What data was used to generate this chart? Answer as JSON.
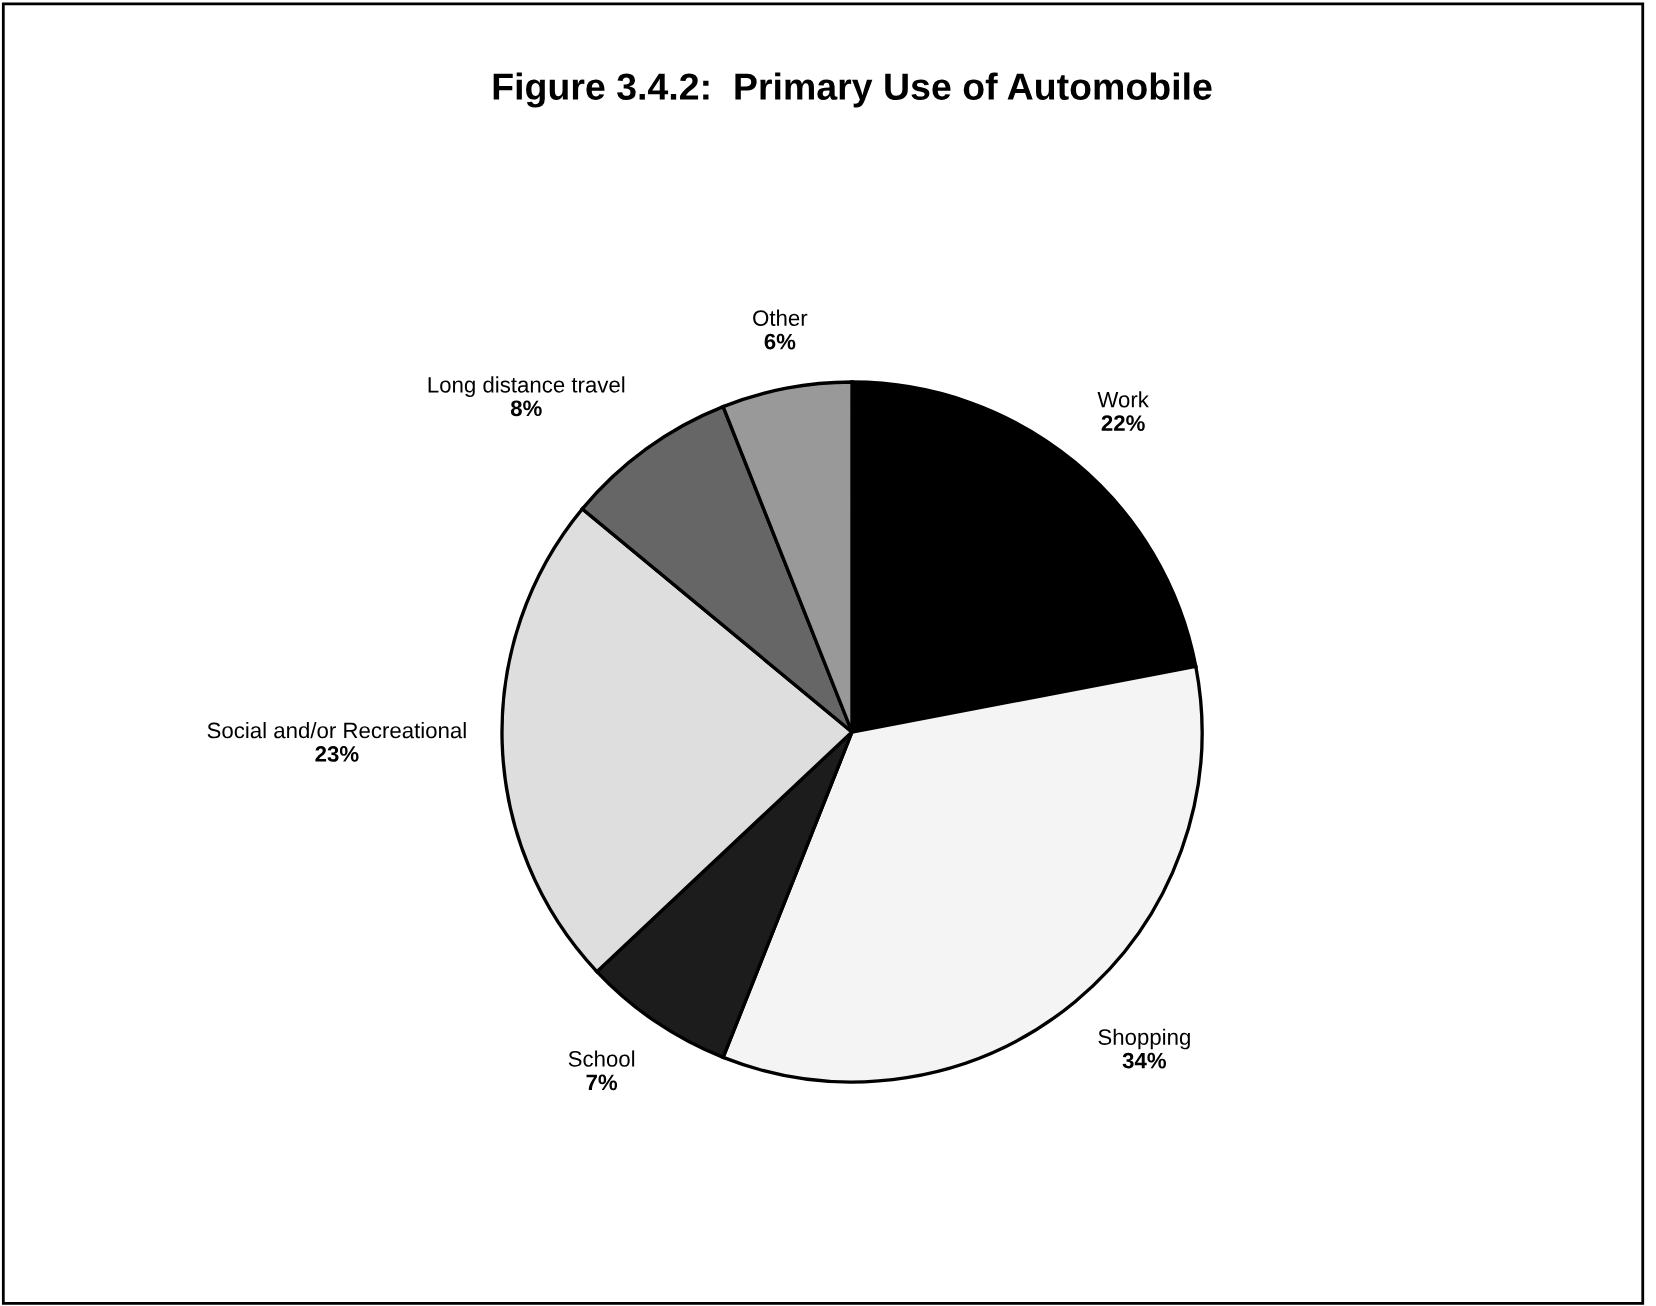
{
  "chart_data": {
    "type": "pie",
    "title": "Figure 3.4.2:  Primary Use of Automobile",
    "categories": [
      "Work",
      "Shopping",
      "School",
      "Social and/or Recreational",
      "Long distance travel",
      "Other"
    ],
    "values": [
      22,
      34,
      7,
      23,
      8,
      6
    ],
    "value_labels": [
      "22%",
      "34%",
      "7%",
      "23%",
      "8%",
      "6%"
    ],
    "colors": [
      "#000000",
      "#f4f4f4",
      "#1c1c1c",
      "#dedede",
      "#666666",
      "#999999"
    ],
    "legend": false
  }
}
